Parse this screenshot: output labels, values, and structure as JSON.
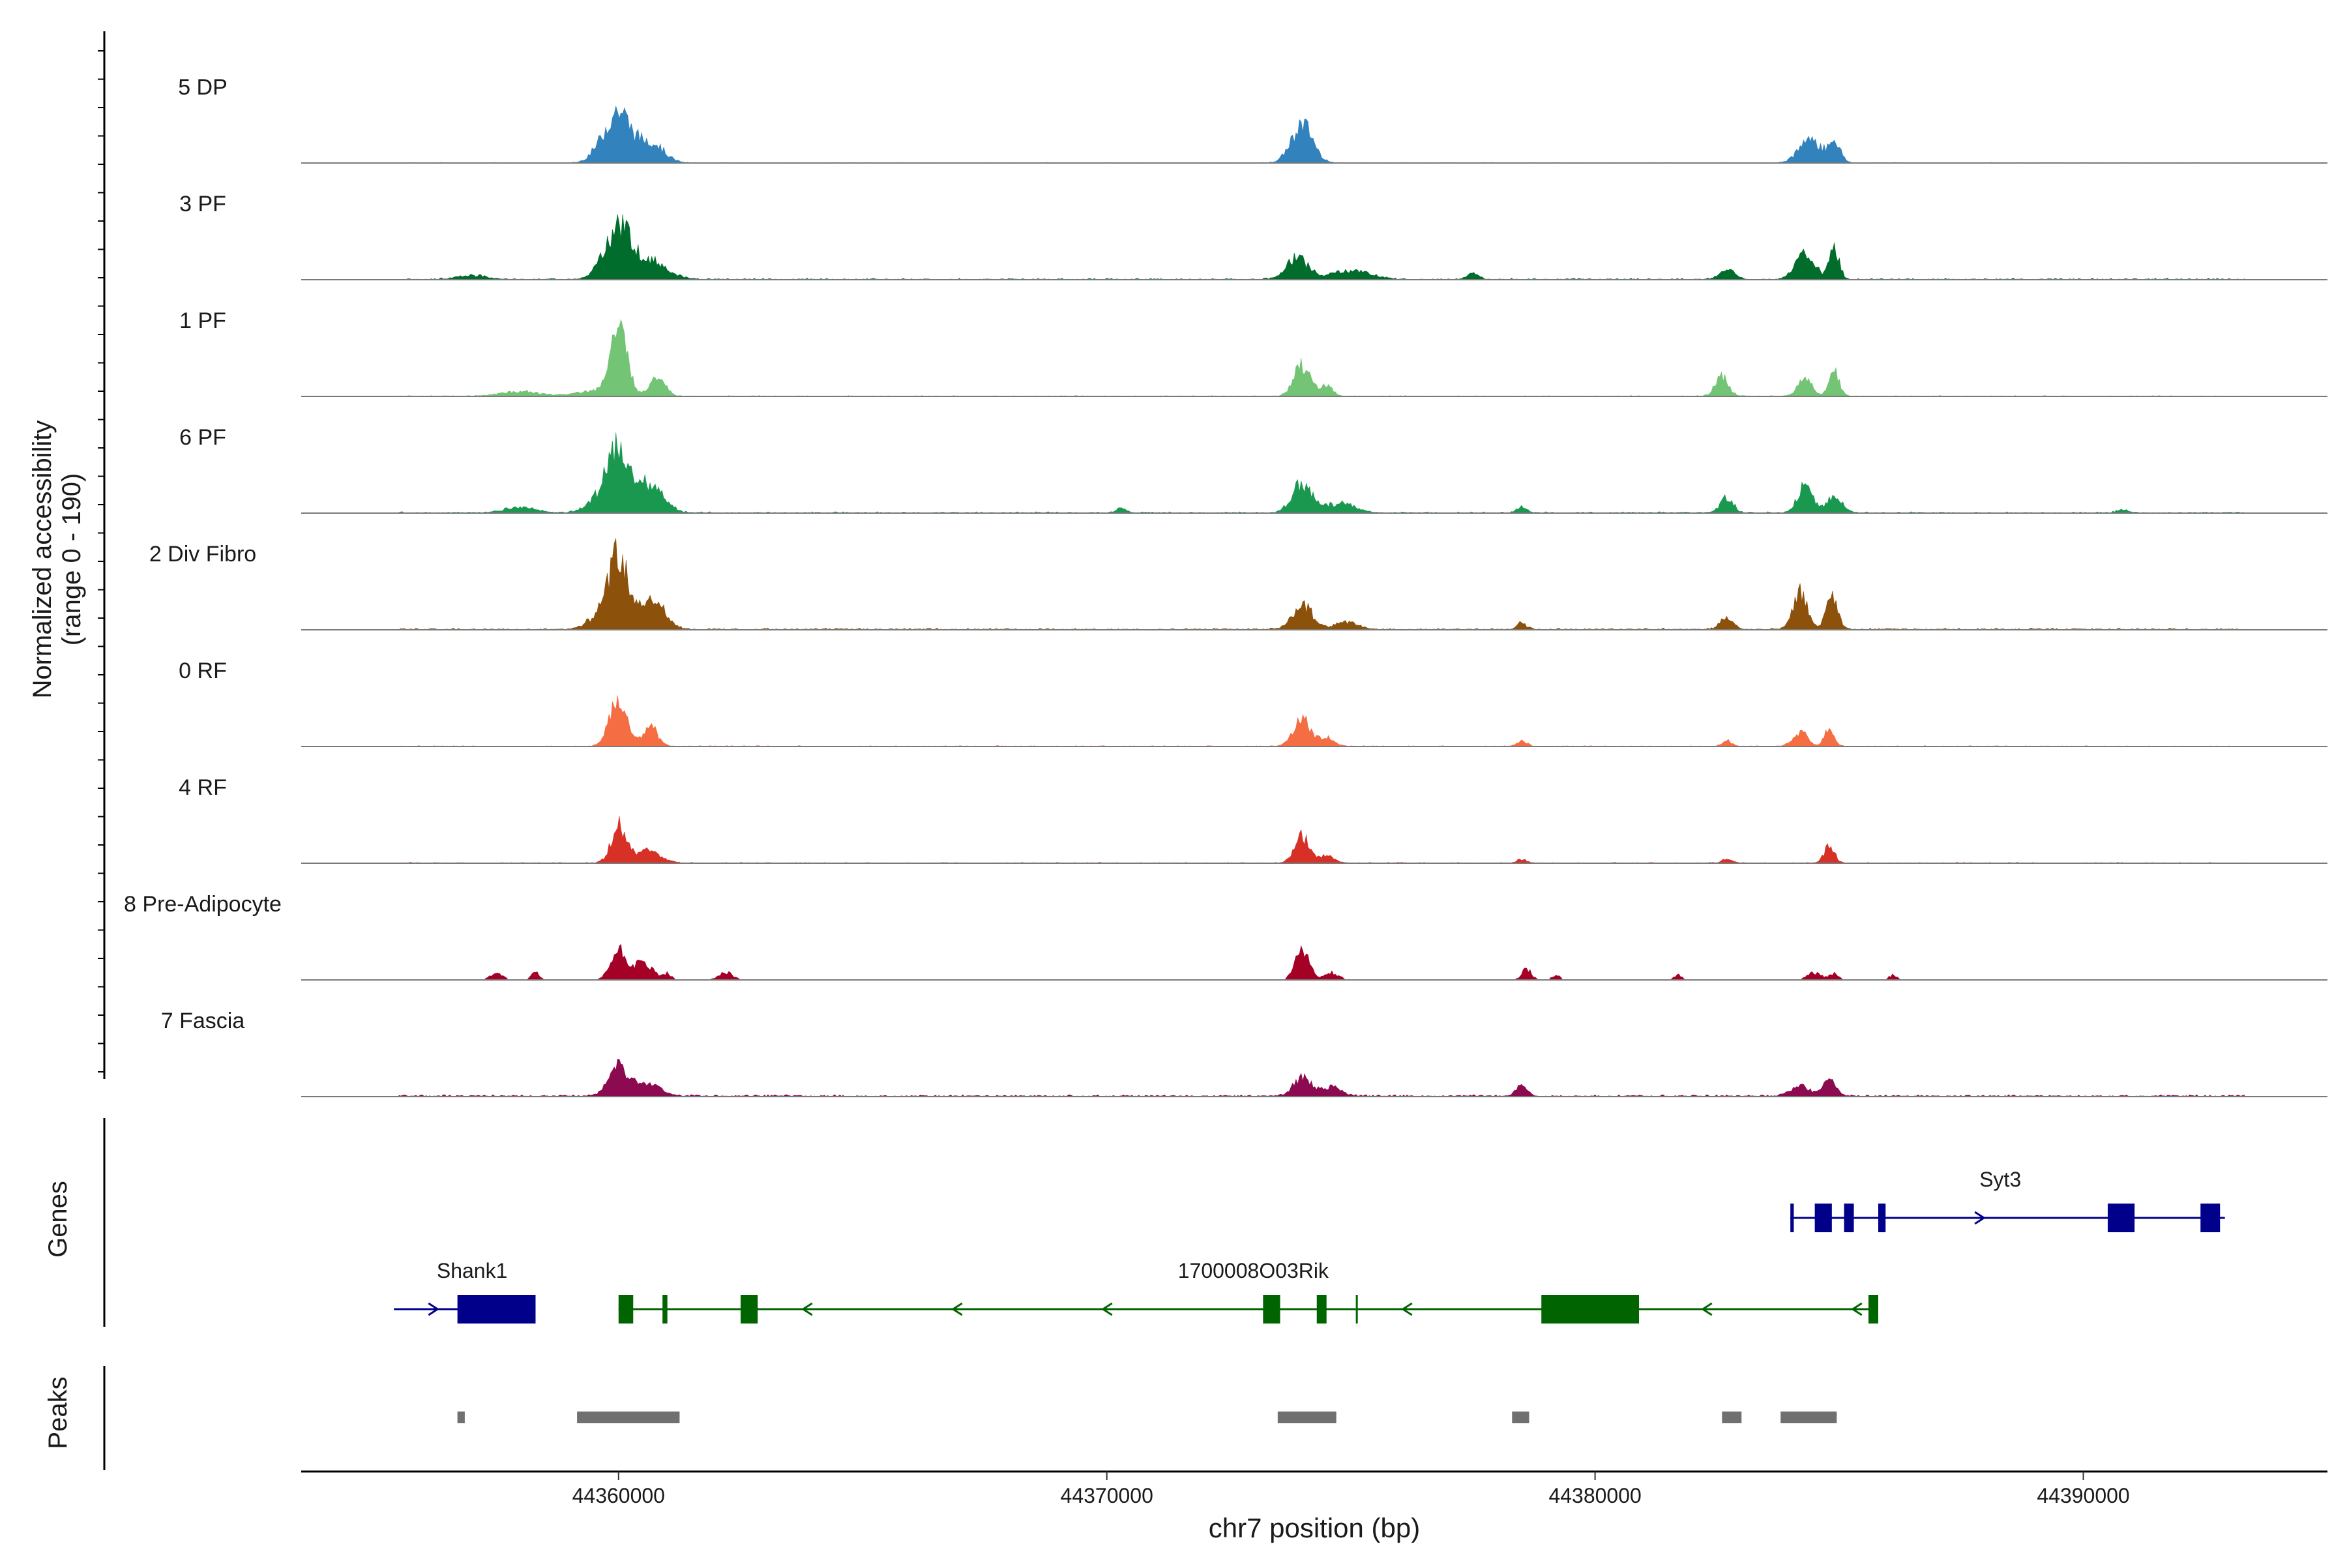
{
  "chart_data": {
    "type": "coverage-track",
    "region": {
      "chrom": "chr7",
      "start": 44353500,
      "end": 44395000
    },
    "coverage": {
      "ylabel": "Normalized accessibility",
      "range_label": "(range 0 - 190)",
      "ylim": [
        0,
        190
      ],
      "tracks": [
        {
          "name": "5 DP",
          "color": "#3182bd",
          "bg": 1.0,
          "peaks": [
            [
              44360000,
              105,
              240
            ],
            [
              44360650,
              45,
              260
            ],
            [
              44359600,
              20,
              200
            ],
            [
              44374000,
              80,
              220
            ],
            [
              44384400,
              50,
              220
            ],
            [
              44384900,
              45,
              120
            ]
          ]
        },
        {
          "name": "3 PF",
          "color": "#006d2c",
          "bg": 2.2,
          "peaks": [
            [
              44360000,
              110,
              280
            ],
            [
              44360700,
              35,
              320
            ],
            [
              44373900,
              45,
              220
            ],
            [
              44375000,
              18,
              400
            ],
            [
              44377500,
              12,
              120
            ],
            [
              44382700,
              18,
              160
            ],
            [
              44384300,
              50,
              200
            ],
            [
              44384900,
              62,
              100
            ],
            [
              44357000,
              8,
              300
            ]
          ]
        },
        {
          "name": "1 PF",
          "color": "#74c476",
          "bg": 1.4,
          "peaks": [
            [
              44360000,
              130,
              180
            ],
            [
              44360800,
              45,
              150
            ],
            [
              44359400,
              10,
              300
            ],
            [
              44374000,
              63,
              170
            ],
            [
              44374500,
              22,
              120
            ],
            [
              44382600,
              45,
              130
            ],
            [
              44384300,
              32,
              160
            ],
            [
              44384900,
              55,
              100
            ],
            [
              44358000,
              10,
              400
            ]
          ]
        },
        {
          "name": "6 PF",
          "color": "#1a9850",
          "bg": 2.2,
          "peaks": [
            [
              44360000,
              135,
              220
            ],
            [
              44360600,
              60,
              300
            ],
            [
              44359600,
              25,
              250
            ],
            [
              44358000,
              12,
              300
            ],
            [
              44374000,
              60,
              200
            ],
            [
              44374800,
              20,
              300
            ],
            [
              44378500,
              12,
              100
            ],
            [
              44382700,
              32,
              130
            ],
            [
              44384300,
              58,
              150
            ],
            [
              44384900,
              38,
              150
            ],
            [
              44370300,
              10,
              100
            ],
            [
              44390800,
              6,
              120
            ]
          ]
        },
        {
          "name": "2 Div Fibro",
          "color": "#8c510a",
          "bg": 2.6,
          "peaks": [
            [
              44360000,
              150,
              200
            ],
            [
              44360700,
              60,
              250
            ],
            [
              44359600,
              25,
              250
            ],
            [
              44374000,
              52,
              200
            ],
            [
              44374900,
              15,
              250
            ],
            [
              44378500,
              12,
              100
            ],
            [
              44382700,
              25,
              130
            ],
            [
              44384200,
              78,
              150
            ],
            [
              44384850,
              65,
              120
            ]
          ]
        },
        {
          "name": "0 RF",
          "color": "#f46d43",
          "bg": 1.4,
          "peaks": [
            [
              44360000,
              95,
              180
            ],
            [
              44360650,
              40,
              150
            ],
            [
              44374000,
              55,
              180
            ],
            [
              44374500,
              18,
              150
            ],
            [
              44378500,
              12,
              100
            ],
            [
              44382700,
              12,
              100
            ],
            [
              44384200,
              30,
              150
            ],
            [
              44384800,
              35,
              100
            ]
          ]
        },
        {
          "name": "4 RF",
          "color": "#d73027",
          "bg": 1.4,
          "peaks": [
            [
              44360000,
              80,
              150
            ],
            [
              44360600,
              25,
              250
            ],
            [
              44374000,
              55,
              150
            ],
            [
              44374500,
              15,
              150
            ],
            [
              44378500,
              8,
              100
            ],
            [
              44382700,
              8,
              100
            ],
            [
              44384800,
              38,
              100
            ]
          ]
        },
        {
          "name": "8 Pre-Adipocyte",
          "color": "#a50026",
          "bg": 0.0,
          "peaks": [
            [
              44357500,
              15,
              120
            ],
            [
              44358300,
              18,
              80
            ],
            [
              44360000,
              60,
              160
            ],
            [
              44360500,
              35,
              200
            ],
            [
              44361000,
              12,
              80
            ],
            [
              44362200,
              15,
              150
            ],
            [
              44374000,
              65,
              140
            ],
            [
              44374600,
              15,
              150
            ],
            [
              44378600,
              22,
              100
            ],
            [
              44379200,
              10,
              80
            ],
            [
              44381700,
              10,
              80
            ],
            [
              44384500,
              15,
              150
            ],
            [
              44384900,
              15,
              80
            ],
            [
              44386100,
              10,
              80
            ]
          ]
        },
        {
          "name": "7 Fascia",
          "color": "#8b0a50",
          "bg": 3.0,
          "peaks": [
            [
              44360000,
              60,
              200
            ],
            [
              44360600,
              25,
              250
            ],
            [
              44374000,
              40,
              180
            ],
            [
              44374600,
              20,
              200
            ],
            [
              44378500,
              22,
              120
            ],
            [
              44384200,
              22,
              200
            ],
            [
              44384800,
              38,
              120
            ]
          ]
        }
      ]
    },
    "genes": {
      "label": "Genes",
      "items": [
        {
          "name": "Shank1",
          "strand": "+",
          "color": "#00008b",
          "start": 44355400,
          "end": 44358300,
          "row": 2,
          "label_at": 44357000,
          "exons": [
            [
              44356700,
              44358300
            ]
          ]
        },
        {
          "name": "1700008O03Rik",
          "strand": "-",
          "color": "#006400",
          "start": 44360000,
          "end": 44385800,
          "row": 2,
          "label_at": 44373000,
          "exons": [
            [
              44360000,
              44360300
            ],
            [
              44360900,
              44361000
            ],
            [
              44362500,
              44362850
            ],
            [
              44373200,
              44373550
            ],
            [
              44374300,
              44374500
            ],
            [
              44375100,
              44375120
            ],
            [
              44378900,
              44380900
            ],
            [
              44385600,
              44385800
            ]
          ]
        },
        {
          "name": "Syt3",
          "strand": "+",
          "color": "#00008b",
          "start": 44384000,
          "end": 44392900,
          "row": 1,
          "label_at": 44388300,
          "exons": [
            [
              44384000,
              44384070
            ],
            [
              44384500,
              44384850
            ],
            [
              44385100,
              44385300
            ],
            [
              44385800,
              44385950
            ],
            [
              44390500,
              44391050
            ],
            [
              44392400,
              44392800
            ]
          ]
        }
      ]
    },
    "peaks": {
      "label": "Peaks",
      "color": "#707070",
      "intervals": [
        [
          44356700,
          44356850
        ],
        [
          44359150,
          44361250
        ],
        [
          44373500,
          44374700
        ],
        [
          44378300,
          44378650
        ],
        [
          44382600,
          44383000
        ],
        [
          44383800,
          44384950
        ]
      ]
    },
    "xaxis": {
      "label": "chr7 position (bp)",
      "ticks": [
        44360000,
        44370000,
        44380000,
        44390000
      ],
      "tick_labels": [
        "44360000",
        "44370000",
        "44380000",
        "44390000"
      ]
    }
  }
}
